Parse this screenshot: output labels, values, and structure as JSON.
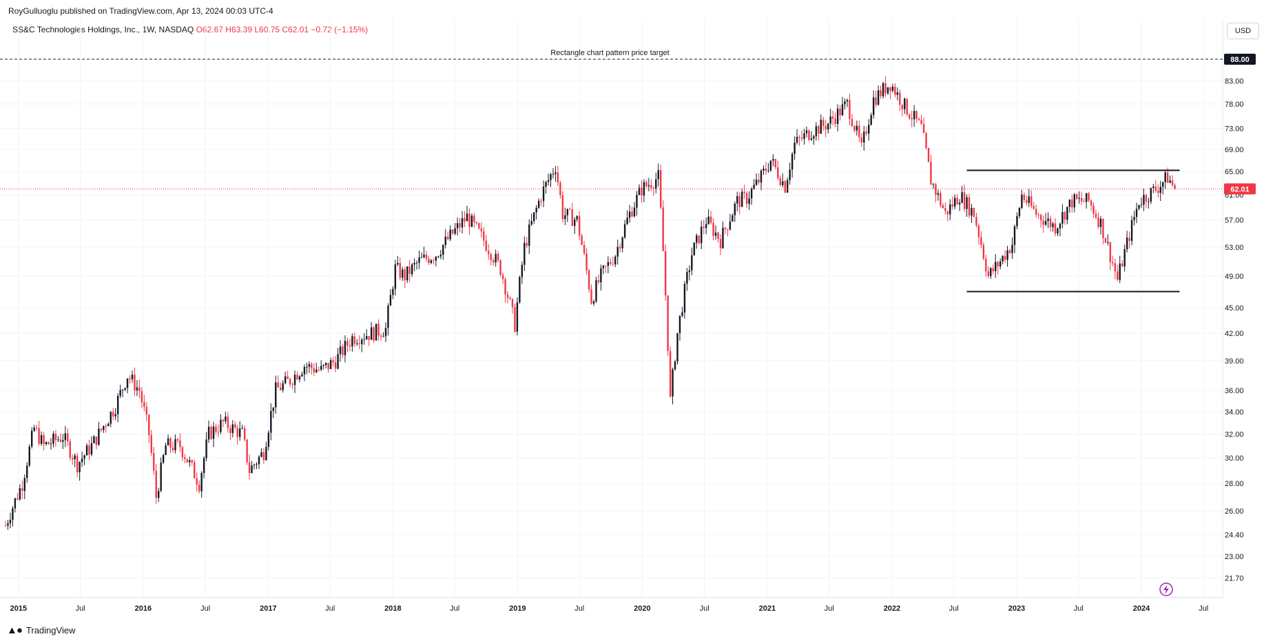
{
  "header": {
    "published_by": "RoyGulluoglu published on TradingView.com, Apr 13, 2024 00:03 UTC-4"
  },
  "symbol_bar": {
    "name": "SS&C Technologies Holdings, Inc., 1W, NASDAQ",
    "open": "O62.67",
    "high": "H63.39",
    "low": "L60.75",
    "close": "C62.01",
    "change": "−0.72 (−1.15%)"
  },
  "currency_label": "USD",
  "footer": {
    "brand": "TradingView"
  },
  "colors": {
    "up": "#131722",
    "down": "#f23645",
    "price_line": "#f23645",
    "grid": "#f0f3fa"
  },
  "chart_data": {
    "type": "candlestick",
    "title": "SS&C Technologies Holdings, Inc., 1W, NASDAQ",
    "scale": "log",
    "ylim": [
      20.5,
      91
    ],
    "y_ticks": [
      21.7,
      23.0,
      24.4,
      26.0,
      28.0,
      30.0,
      32.0,
      34.0,
      36.0,
      39.0,
      42.0,
      45.0,
      49.0,
      53.0,
      57.0,
      61.0,
      65.0,
      69.0,
      73.0,
      78.0,
      83.0
    ],
    "y_tick_labels": [
      "21.70",
      "23.00",
      "24.40",
      "26.00",
      "28.00",
      "30.00",
      "32.00",
      "34.00",
      "36.00",
      "39.00",
      "42.00",
      "45.00",
      "49.00",
      "53.00",
      "57.00",
      "61.00",
      "65.00",
      "69.00",
      "73.00",
      "78.00",
      "83.00"
    ],
    "x_range": [
      "2014-11-24",
      "2024-08-26"
    ],
    "x_ticks": [
      {
        "date": "2015-01-01",
        "label": "2015",
        "year": true
      },
      {
        "date": "2015-07-01",
        "label": "Jul",
        "year": false
      },
      {
        "date": "2016-01-01",
        "label": "2016",
        "year": true
      },
      {
        "date": "2016-07-01",
        "label": "Jul",
        "year": false
      },
      {
        "date": "2017-01-01",
        "label": "2017",
        "year": true
      },
      {
        "date": "2017-07-01",
        "label": "Jul",
        "year": false
      },
      {
        "date": "2018-01-01",
        "label": "2018",
        "year": true
      },
      {
        "date": "2018-07-01",
        "label": "Jul",
        "year": false
      },
      {
        "date": "2019-01-01",
        "label": "2019",
        "year": true
      },
      {
        "date": "2019-07-01",
        "label": "Jul",
        "year": false
      },
      {
        "date": "2020-01-01",
        "label": "2020",
        "year": true
      },
      {
        "date": "2020-07-01",
        "label": "Jul",
        "year": false
      },
      {
        "date": "2021-01-01",
        "label": "2021",
        "year": true
      },
      {
        "date": "2021-07-01",
        "label": "Jul",
        "year": false
      },
      {
        "date": "2022-01-01",
        "label": "2022",
        "year": true
      },
      {
        "date": "2022-07-01",
        "label": "Jul",
        "year": false
      },
      {
        "date": "2023-01-01",
        "label": "2023",
        "year": true
      },
      {
        "date": "2023-07-01",
        "label": "Jul",
        "year": false
      },
      {
        "date": "2024-01-01",
        "label": "2024",
        "year": true
      },
      {
        "date": "2024-07-01",
        "label": "Jul",
        "year": false
      }
    ],
    "last_price": {
      "value": 62.01,
      "label": "62.01"
    },
    "target": {
      "value": 88.0,
      "label": "88.00",
      "text": "Rectangle chart pattern price target"
    },
    "rectangle": {
      "top": 65.2,
      "bottom": 47.0,
      "start": "2022-08-08",
      "end": "2024-04-22"
    },
    "price_path": [
      [
        "2014-11-24",
        25.0
      ],
      [
        "2015-01-12",
        28.0
      ],
      [
        "2015-02-16",
        32.5
      ],
      [
        "2015-03-16",
        31.0
      ],
      [
        "2015-05-11",
        31.8
      ],
      [
        "2015-06-22",
        29.5
      ],
      [
        "2015-08-03",
        31.0
      ],
      [
        "2015-08-24",
        32.0
      ],
      [
        "2015-10-12",
        34.5
      ],
      [
        "2015-11-16",
        37.5
      ],
      [
        "2015-12-21",
        36.0
      ],
      [
        "2016-01-18",
        32.0
      ],
      [
        "2016-02-08",
        27.0
      ],
      [
        "2016-03-07",
        31.0
      ],
      [
        "2016-04-18",
        31.0
      ],
      [
        "2016-06-13",
        28.0
      ],
      [
        "2016-07-11",
        32.0
      ],
      [
        "2016-08-22",
        33.0
      ],
      [
        "2016-10-17",
        32.0
      ],
      [
        "2016-11-07",
        29.0
      ],
      [
        "2016-12-19",
        30.5
      ],
      [
        "2017-01-23",
        36.0
      ],
      [
        "2017-03-06",
        37.0
      ],
      [
        "2017-04-17",
        38.5
      ],
      [
        "2017-06-05",
        38.0
      ],
      [
        "2017-07-17",
        39.0
      ],
      [
        "2017-09-04",
        41.5
      ],
      [
        "2017-10-30",
        42.0
      ],
      [
        "2017-12-11",
        42.5
      ],
      [
        "2018-01-08",
        50.0
      ],
      [
        "2018-02-05",
        49.0
      ],
      [
        "2018-03-19",
        51.0
      ],
      [
        "2018-05-07",
        52.0
      ],
      [
        "2018-06-25",
        55.0
      ],
      [
        "2018-08-06",
        57.5
      ],
      [
        "2018-09-24",
        54.0
      ],
      [
        "2018-11-12",
        50.0
      ],
      [
        "2018-12-24",
        43.0
      ],
      [
        "2019-01-21",
        53.0
      ],
      [
        "2019-03-11",
        61.0
      ],
      [
        "2019-04-22",
        66.0
      ],
      [
        "2019-05-13",
        58.0
      ],
      [
        "2019-06-24",
        57.0
      ],
      [
        "2019-08-05",
        46.0
      ],
      [
        "2019-09-02",
        49.0
      ],
      [
        "2019-10-14",
        52.0
      ],
      [
        "2019-11-25",
        58.0
      ],
      [
        "2019-12-30",
        62.0
      ],
      [
        "2020-02-17",
        64.0
      ],
      [
        "2020-03-23",
        35.0
      ],
      [
        "2020-04-13",
        42.0
      ],
      [
        "2020-05-25",
        52.0
      ],
      [
        "2020-07-06",
        57.0
      ],
      [
        "2020-08-17",
        54.0
      ],
      [
        "2020-10-05",
        60.0
      ],
      [
        "2020-11-02",
        60.5
      ],
      [
        "2020-12-14",
        64.0
      ],
      [
        "2021-01-11",
        67.0
      ],
      [
        "2021-02-22",
        62.5
      ],
      [
        "2021-03-22",
        70.0
      ],
      [
        "2021-05-10",
        72.5
      ],
      [
        "2021-06-28",
        74.0
      ],
      [
        "2021-08-23",
        78.0
      ],
      [
        "2021-10-04",
        69.0
      ],
      [
        "2021-11-08",
        79.0
      ],
      [
        "2021-12-27",
        82.5
      ],
      [
        "2022-02-07",
        77.5
      ],
      [
        "2022-03-28",
        73.0
      ],
      [
        "2022-04-25",
        63.5
      ],
      [
        "2022-06-06",
        58.0
      ],
      [
        "2022-07-18",
        61.0
      ],
      [
        "2022-08-29",
        58.0
      ],
      [
        "2022-10-10",
        49.0
      ],
      [
        "2022-11-14",
        51.0
      ],
      [
        "2022-12-19",
        53.5
      ],
      [
        "2023-01-16",
        61.0
      ],
      [
        "2023-02-27",
        58.0
      ],
      [
        "2023-04-24",
        56.0
      ],
      [
        "2023-06-12",
        60.0
      ],
      [
        "2023-07-31",
        60.0
      ],
      [
        "2023-09-04",
        56.5
      ],
      [
        "2023-10-23",
        48.5
      ],
      [
        "2023-11-20",
        53.5
      ],
      [
        "2023-12-25",
        60.0
      ],
      [
        "2024-02-12",
        62.0
      ],
      [
        "2024-03-18",
        64.0
      ],
      [
        "2024-04-08",
        62.01
      ]
    ]
  }
}
